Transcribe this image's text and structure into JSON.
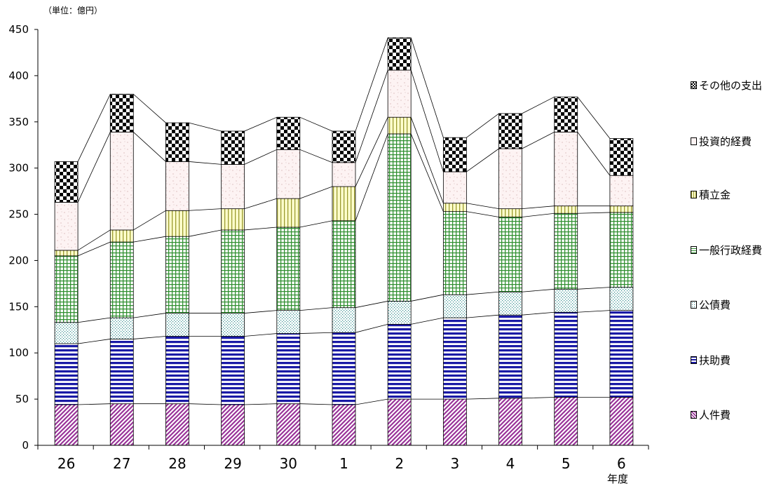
{
  "chart_data": {
    "type": "bar",
    "stacked": true,
    "unit_label": "（単位：億円）",
    "xaxis_unit": "年度",
    "categories": [
      "26",
      "27",
      "28",
      "29",
      "30",
      "1",
      "2",
      "3",
      "4",
      "5",
      "6"
    ],
    "ylim": [
      0,
      450
    ],
    "yticks": [
      0,
      50,
      100,
      150,
      200,
      250,
      300,
      350,
      400,
      450
    ],
    "grid": false,
    "legend_position": "right",
    "series": [
      {
        "name": "人件費",
        "color": "#993399",
        "pattern": "diagonal",
        "values": [
          44,
          45,
          45,
          44,
          45,
          44,
          50,
          50,
          51,
          52,
          52
        ]
      },
      {
        "name": "扶助費",
        "color": "#1a1aa6",
        "pattern": "horizontal",
        "values": [
          66,
          70,
          73,
          74,
          76,
          78,
          81,
          88,
          90,
          92,
          94
        ]
      },
      {
        "name": "公債費",
        "color": "#2e8b8b",
        "pattern": "dots",
        "values": [
          23,
          23,
          25,
          25,
          25,
          27,
          25,
          25,
          25,
          25,
          25
        ]
      },
      {
        "name": "一般行政経費",
        "color": "#2f8f2f",
        "pattern": "grid",
        "values": [
          72,
          82,
          83,
          90,
          90,
          94,
          181,
          90,
          81,
          82,
          81
        ]
      },
      {
        "name": "積立金",
        "color": "#9a9a30",
        "pattern": "vertical",
        "values": [
          6,
          13,
          28,
          23,
          31,
          37,
          18,
          9,
          9,
          8,
          7
        ]
      },
      {
        "name": "投資的経費",
        "color": "#c8a0a0",
        "pattern": "speckle",
        "values": [
          52,
          106,
          53,
          48,
          53,
          26,
          51,
          34,
          65,
          80,
          33
        ]
      },
      {
        "name": "その他の支出",
        "color": "#000000",
        "pattern": "checker",
        "values": [
          44,
          41,
          42,
          36,
          35,
          34,
          35,
          37,
          38,
          38,
          40
        ]
      }
    ]
  }
}
